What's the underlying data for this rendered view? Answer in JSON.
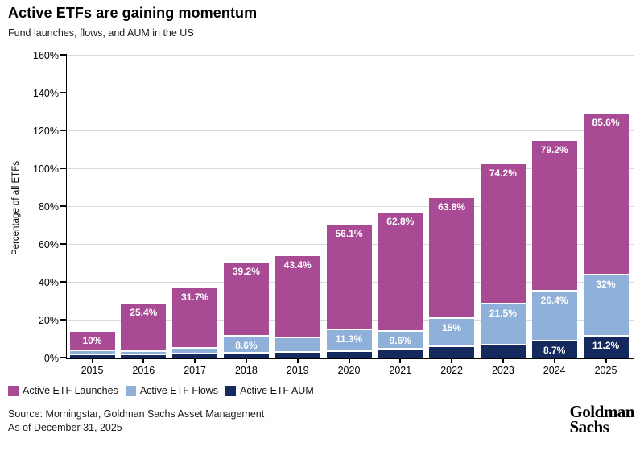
{
  "header": {
    "title": "Active ETFs are gaining momentum",
    "subtitle": "Fund launches, flows, and AUM in the US"
  },
  "chart_data": {
    "type": "bar",
    "stacked": true,
    "title": "Active ETFs are gaining momentum",
    "subtitle": "Fund launches, flows, and AUM in the US",
    "xlabel": "",
    "ylabel": "Percentage of all ETFs",
    "ylim": [
      0,
      160
    ],
    "ytick_step": 20,
    "ytick_suffix": "%",
    "grid": true,
    "legend_position": "bottom-left",
    "categories": [
      "2015",
      "2016",
      "2017",
      "2018",
      "2019",
      "2020",
      "2021",
      "2022",
      "2023",
      "2024",
      "2025"
    ],
    "series": [
      {
        "name": "Active ETF Launches",
        "color": "#a94a95",
        "values": [
          10,
          25.4,
          31.7,
          39.2,
          43.4,
          56.1,
          62.8,
          63.8,
          74.2,
          79.2,
          85.6
        ],
        "labels": [
          "10%",
          "25.4%",
          "31.7%",
          "39.2%",
          "43.4%",
          "56.1%",
          "62.8%",
          "63.8%",
          "74.2%",
          "79.2%",
          "85.6%"
        ]
      },
      {
        "name": "Active ETF Flows",
        "color": "#8fb0d8",
        "values": [
          2.4,
          2.0,
          3.3,
          8.6,
          7.8,
          11.3,
          9.6,
          15,
          21.5,
          26.4,
          32
        ],
        "labels": [
          null,
          null,
          null,
          "8.6%",
          null,
          "11.3%",
          "9.6%",
          "15%",
          "21.5%",
          "26.4%",
          "32%"
        ]
      },
      {
        "name": "Active ETF AUM",
        "color": "#14295d",
        "values": [
          1.2,
          1.1,
          1.5,
          2.3,
          2.5,
          3.0,
          4.2,
          5.5,
          6.5,
          8.7,
          11.2
        ],
        "labels": [
          null,
          null,
          null,
          null,
          null,
          null,
          null,
          null,
          null,
          "8.7%",
          "11.2%"
        ]
      }
    ],
    "stack_order_bottom_to_top": [
      "Active ETF AUM",
      "Active ETF Flows",
      "Active ETF Launches"
    ]
  },
  "footer": {
    "source_line1": "Source: Morningstar, Goldman Sachs Asset Management",
    "source_line2": "As of December 31, 2025",
    "logo_line1": "Goldman",
    "logo_line2": "Sachs"
  }
}
